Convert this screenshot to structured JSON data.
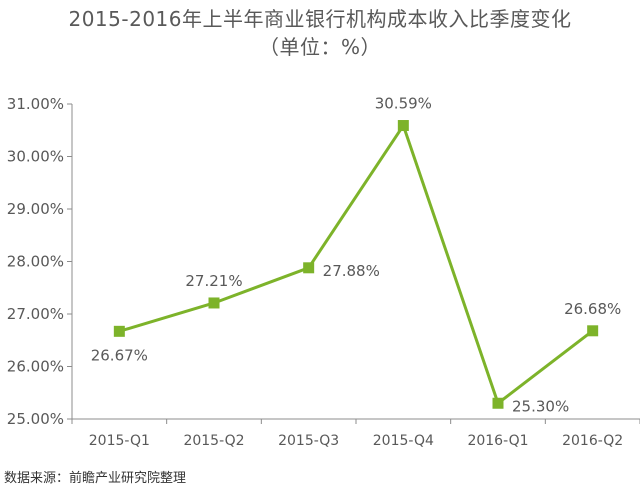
{
  "chart_data": {
    "type": "line",
    "title": "2015-2016年上半年商业银行机构成本收入比季度变化",
    "subtitle": "（单位：%）",
    "categories": [
      "2015-Q1",
      "2015-Q2",
      "2015-Q3",
      "2015-Q4",
      "2016-Q1",
      "2016-Q2"
    ],
    "series": [
      {
        "values": [
          26.67,
          27.21,
          27.88,
          30.59,
          25.3,
          26.68
        ]
      }
    ],
    "data_labels": [
      "26.67%",
      "27.21%",
      "27.88%",
      "30.59%",
      "25.30%",
      "26.68%"
    ],
    "data_label_position": [
      "below",
      "above",
      "right",
      "above",
      "right",
      "above"
    ],
    "ylim": [
      25,
      31
    ],
    "yticks": [
      25,
      26,
      27,
      28,
      29,
      30,
      31
    ],
    "ytick_labels": [
      "25.00%",
      "26.00%",
      "27.00%",
      "28.00%",
      "29.00%",
      "30.00%",
      "31.00%"
    ],
    "xlabel": "",
    "ylabel": "",
    "grid": false,
    "legend": "none",
    "colors": {
      "line": "#7DB32A",
      "marker": "#7DB32A",
      "axis": "#8C8C8C",
      "text": "#595959"
    },
    "source": "数据来源：前瞻产业研究院整理"
  }
}
